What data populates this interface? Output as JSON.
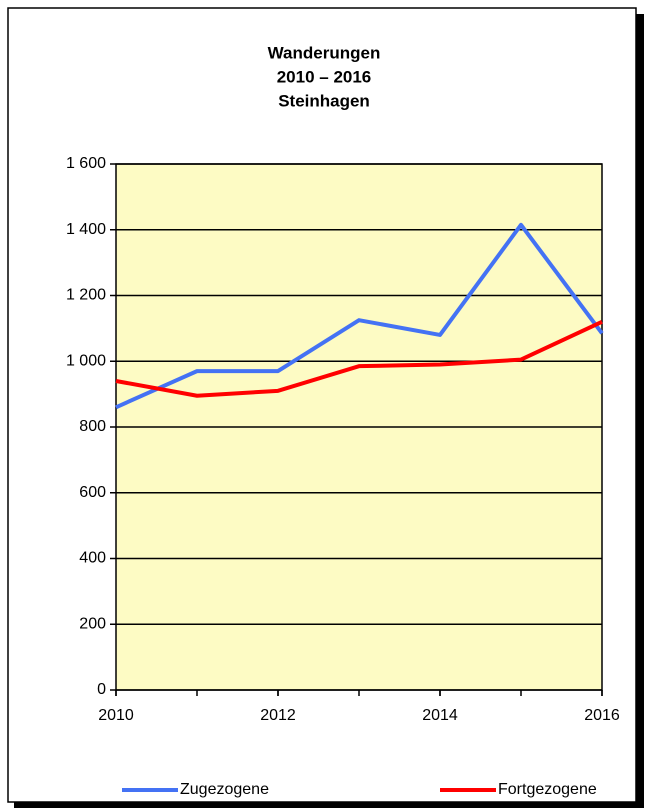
{
  "chart_data": {
    "type": "line",
    "title": [
      "Wanderungen",
      "2010 – 2016",
      "Steinhagen"
    ],
    "x": [
      2010,
      2011,
      2012,
      2013,
      2014,
      2015,
      2016
    ],
    "series": [
      {
        "name": "Zugezogene",
        "color": "#4472f4",
        "values": [
          860,
          970,
          970,
          1125,
          1080,
          1415,
          1085
        ]
      },
      {
        "name": "Fortgezogene",
        "color": "#ff0000",
        "values": [
          940,
          895,
          910,
          985,
          990,
          1005,
          1120
        ]
      }
    ],
    "xlim": [
      2010,
      2016
    ],
    "xticks": [
      2010,
      2012,
      2014,
      2016
    ],
    "ylim": [
      0,
      1600
    ],
    "yticks": [
      0,
      200,
      400,
      600,
      800,
      {
        "value": 1000,
        "label": "1 000"
      },
      {
        "value": 1200,
        "label": "1 200"
      },
      {
        "value": 1400,
        "label": "1 400"
      },
      {
        "value": 1600,
        "label": "1 600"
      }
    ],
    "grid": true,
    "legend": "bottom"
  }
}
